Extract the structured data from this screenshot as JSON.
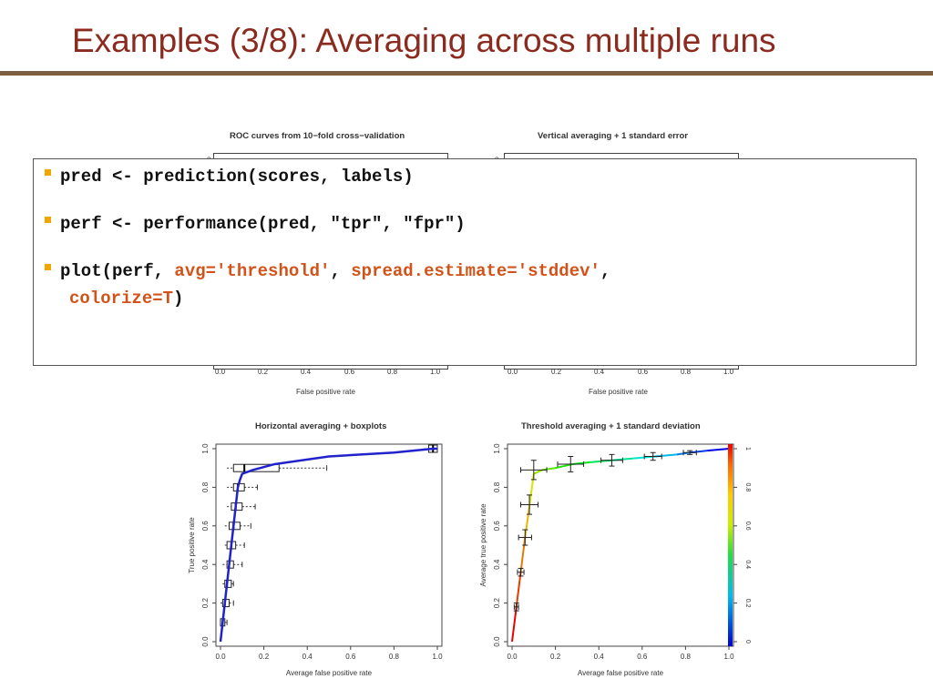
{
  "slide": {
    "title": "Examples (3/8): Averaging across multiple runs"
  },
  "top_charts": {
    "left_title": "ROC curves from 10−fold cross−validation",
    "right_title": "Vertical averaging + 1 standard error",
    "x_ticks": [
      "0.0",
      "0.2",
      "0.4",
      "0.6",
      "0.8",
      "1.0"
    ],
    "left_xlabel": "False positive rate",
    "right_xlabel": "False positive rate"
  },
  "code": {
    "line1": "pred <- prediction(scores, labels)",
    "line2": "perf <- performance(pred, \"tpr\", \"fpr\")",
    "line3_a": "plot(perf, ",
    "line3_b": "avg='threshold'",
    "line3_c": ", ",
    "line3_d": "spread.estimate='stddev'",
    "line3_e": ",",
    "line3_f": "colorize=T",
    "line3_g": ")"
  },
  "colors": {
    "title": "#8b2a1e",
    "rule": "#7d5e3e",
    "bullet": "#f0a500",
    "highlight": "#d2531a"
  },
  "chart_data": [
    {
      "type": "line",
      "title": "Horizontal averaging + boxplots",
      "xlabel": "Average false positive rate",
      "ylabel": "True positive rate",
      "xlim": [
        0,
        1
      ],
      "ylim": [
        0,
        1
      ],
      "x_ticks": [
        "0.0",
        "0.2",
        "0.4",
        "0.6",
        "0.8",
        "1.0"
      ],
      "y_ticks": [
        "0.0",
        "0.2",
        "0.4",
        "0.6",
        "0.8",
        "1.0"
      ],
      "series": [
        {
          "color": "#2222cc",
          "x": [
            0.0,
            0.01,
            0.02,
            0.03,
            0.04,
            0.05,
            0.06,
            0.07,
            0.08,
            0.09,
            0.1,
            0.15,
            0.25,
            0.5,
            0.8,
            0.98,
            1.0
          ],
          "y": [
            0.0,
            0.1,
            0.2,
            0.3,
            0.4,
            0.5,
            0.6,
            0.7,
            0.8,
            0.84,
            0.87,
            0.89,
            0.92,
            0.96,
            0.98,
            1.0,
            1.0
          ]
        }
      ],
      "boxplots": [
        {
          "y": 0.1,
          "q1": 0.0,
          "median": 0.01,
          "q3": 0.02,
          "wmin": 0.0,
          "wmax": 0.03
        },
        {
          "y": 0.2,
          "q1": 0.01,
          "median": 0.02,
          "q3": 0.04,
          "wmin": 0.0,
          "wmax": 0.06
        },
        {
          "y": 0.3,
          "q1": 0.02,
          "median": 0.03,
          "q3": 0.05,
          "wmin": 0.01,
          "wmax": 0.06
        },
        {
          "y": 0.4,
          "q1": 0.03,
          "median": 0.04,
          "q3": 0.06,
          "wmin": 0.01,
          "wmax": 0.1
        },
        {
          "y": 0.5,
          "q1": 0.03,
          "median": 0.05,
          "q3": 0.07,
          "wmin": 0.02,
          "wmax": 0.11
        },
        {
          "y": 0.6,
          "q1": 0.04,
          "median": 0.06,
          "q3": 0.09,
          "wmin": 0.02,
          "wmax": 0.14
        },
        {
          "y": 0.7,
          "q1": 0.05,
          "median": 0.07,
          "q3": 0.1,
          "wmin": 0.03,
          "wmax": 0.16
        },
        {
          "y": 0.8,
          "q1": 0.06,
          "median": 0.08,
          "q3": 0.11,
          "wmin": 0.03,
          "wmax": 0.17
        },
        {
          "y": 0.9,
          "q1": 0.06,
          "median": 0.11,
          "q3": 0.27,
          "wmin": 0.03,
          "wmax": 0.49
        },
        {
          "y": 1.0,
          "q1": 0.96,
          "median": 0.98,
          "q3": 1.0,
          "wmin": 0.94,
          "wmax": 1.0
        }
      ]
    },
    {
      "type": "line",
      "title": "Threshold averaging + 1 standard deviation",
      "xlabel": "Average false positive rate",
      "ylabel": "Average true positive rate",
      "xlim": [
        0,
        1
      ],
      "ylim": [
        0,
        1
      ],
      "x_ticks": [
        "0.0",
        "0.2",
        "0.4",
        "0.6",
        "0.8",
        "1.0"
      ],
      "y_ticks": [
        "0.0",
        "0.2",
        "0.4",
        "0.6",
        "0.8",
        "1.0"
      ],
      "colorbar_ticks": [
        "0",
        "0.2",
        "0.4",
        "0.6",
        "0.8",
        "1"
      ],
      "series": [
        {
          "colorized": true,
          "x": [
            0.0,
            0.02,
            0.04,
            0.06,
            0.08,
            0.1,
            0.14,
            0.2,
            0.28,
            0.36,
            0.46,
            0.56,
            0.66,
            0.76,
            0.82,
            0.9,
            1.0
          ],
          "y": [
            0.0,
            0.18,
            0.36,
            0.54,
            0.7,
            0.87,
            0.89,
            0.9,
            0.92,
            0.93,
            0.94,
            0.95,
            0.96,
            0.97,
            0.98,
            0.99,
            1.0
          ]
        }
      ],
      "errorbars": [
        {
          "x": 0.02,
          "y": 0.18,
          "xerr": 0.01,
          "yerr": 0.02
        },
        {
          "x": 0.04,
          "y": 0.36,
          "xerr": 0.015,
          "yerr": 0.02
        },
        {
          "x": 0.06,
          "y": 0.54,
          "xerr": 0.03,
          "yerr": 0.04
        },
        {
          "x": 0.08,
          "y": 0.71,
          "xerr": 0.04,
          "yerr": 0.05
        },
        {
          "x": 0.1,
          "y": 0.89,
          "xerr": 0.06,
          "yerr": 0.05
        },
        {
          "x": 0.27,
          "y": 0.92,
          "xerr": 0.06,
          "yerr": 0.04
        },
        {
          "x": 0.46,
          "y": 0.94,
          "xerr": 0.05,
          "yerr": 0.03
        },
        {
          "x": 0.65,
          "y": 0.96,
          "xerr": 0.04,
          "yerr": 0.02
        },
        {
          "x": 0.82,
          "y": 0.98,
          "xerr": 0.03,
          "yerr": 0.01
        }
      ]
    }
  ]
}
